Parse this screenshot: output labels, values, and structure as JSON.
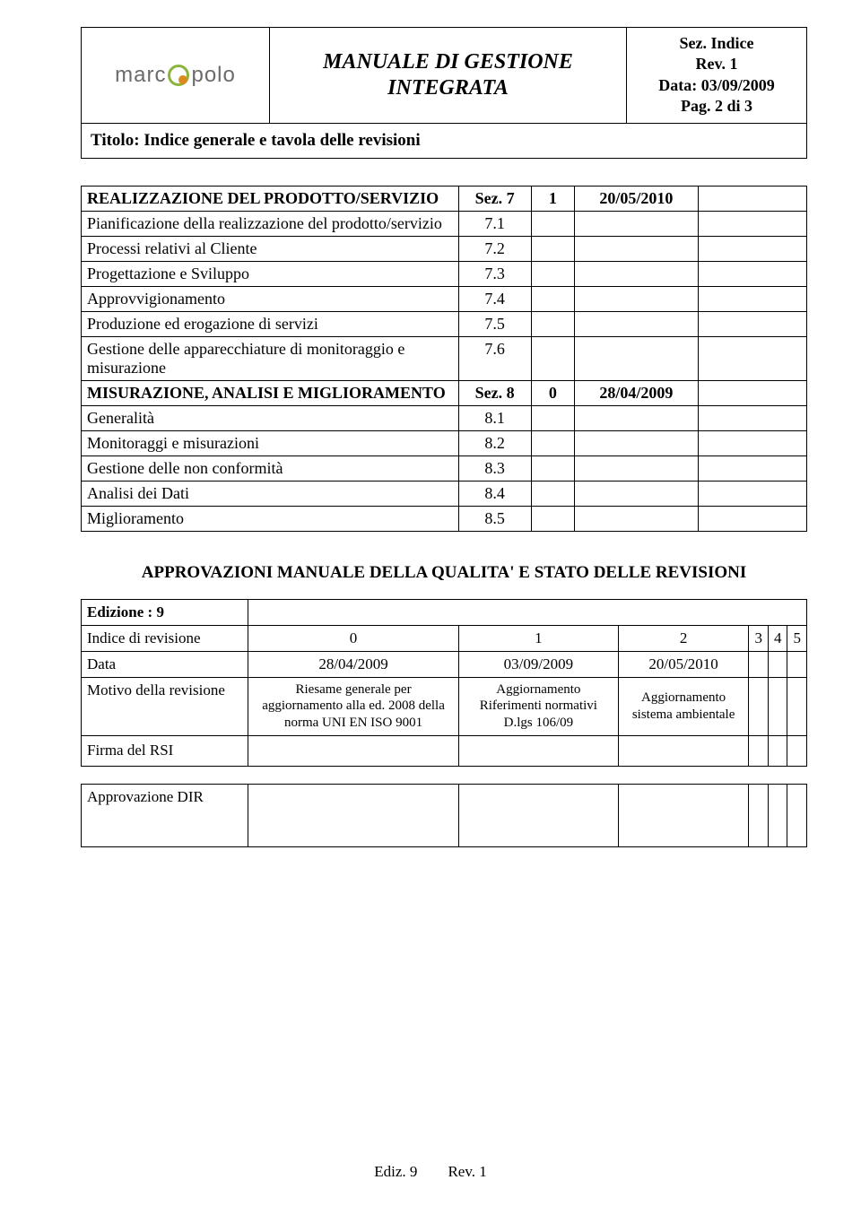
{
  "header": {
    "logo_text_left": "marc",
    "logo_text_right": "polo",
    "doc_title": "MANUALE DI GESTIONE INTEGRATA",
    "meta": {
      "sez": "Sez. Indice",
      "rev": "Rev. 1",
      "data": "Data: 03/09/2009",
      "pag": "Pag. 2 di 3"
    },
    "subtitle": "Titolo:  Indice generale e tavola delle revisioni"
  },
  "table1": {
    "rows": [
      {
        "desc": "REALIZZAZIONE DEL PRODOTTO/SERVIZIO",
        "sec": "Sez. 7",
        "rev": "1",
        "date": "20/05/2010",
        "head": true,
        "sc": true
      },
      {
        "desc": "Pianificazione della realizzazione del prodotto/servizio",
        "sec": "7.1",
        "rev": "",
        "date": ""
      },
      {
        "desc": "Processi relativi al Cliente",
        "sec": "7.2",
        "rev": "",
        "date": ""
      },
      {
        "desc": "Progettazione e Sviluppo",
        "sec": "7.3",
        "rev": "",
        "date": ""
      },
      {
        "desc": "Approvvigionamento",
        "sec": "7.4",
        "rev": "",
        "date": ""
      },
      {
        "desc": "Produzione ed erogazione di servizi",
        "sec": "7.5",
        "rev": "",
        "date": ""
      },
      {
        "desc": "Gestione delle apparecchiature di monitoraggio e misurazione",
        "sec": "7.6",
        "rev": "",
        "date": ""
      },
      {
        "desc": "MISURAZIONE, ANALISI E MIGLIORAMENTO",
        "sec": "Sez. 8",
        "rev": "0",
        "date": "28/04/2009",
        "head": true,
        "sc": true
      },
      {
        "desc": "Generalità",
        "sec": "8.1",
        "rev": "",
        "date": ""
      },
      {
        "desc": "Monitoraggi e misurazioni",
        "sec": "8.2",
        "rev": "",
        "date": ""
      },
      {
        "desc": "Gestione delle non conformità",
        "sec": "8.3",
        "rev": "",
        "date": ""
      },
      {
        "desc": "Analisi dei Dati",
        "sec": "8.4",
        "rev": "",
        "date": ""
      },
      {
        "desc": "Miglioramento",
        "sec": "8.5",
        "rev": "",
        "date": ""
      }
    ]
  },
  "approvals_heading": "APPROVAZIONI MANUALE DELLA QUALITA' E STATO DELLE REVISIONI",
  "table2": {
    "edizione_label": "Edizione : 9",
    "rows": {
      "indice_label": "Indice di revisione",
      "indice": [
        "0",
        "1",
        "2",
        "3",
        "4",
        "5"
      ],
      "data_label": "Data",
      "data": [
        "28/04/2009",
        "03/09/2009",
        "20/05/2010",
        "",
        "",
        ""
      ],
      "motivo_label": "Motivo della revisione",
      "motivo": [
        "Riesame generale per aggiornamento alla ed. 2008 della norma UNI EN ISO 9001",
        "Aggiornamento Riferimenti normativi D.lgs 106/09",
        "Aggiornamento sistema ambientale",
        "",
        "",
        ""
      ],
      "firma_label": "Firma del  RSI",
      "approv_label": "Approvazione  DIR"
    }
  },
  "footer": {
    "ediz": "Ediz. 9",
    "rev": "Rev. 1"
  },
  "colors": {
    "logo_green": "#8bb43c",
    "logo_orange": "#d98b1f",
    "logo_grey": "#6b6b6b"
  }
}
